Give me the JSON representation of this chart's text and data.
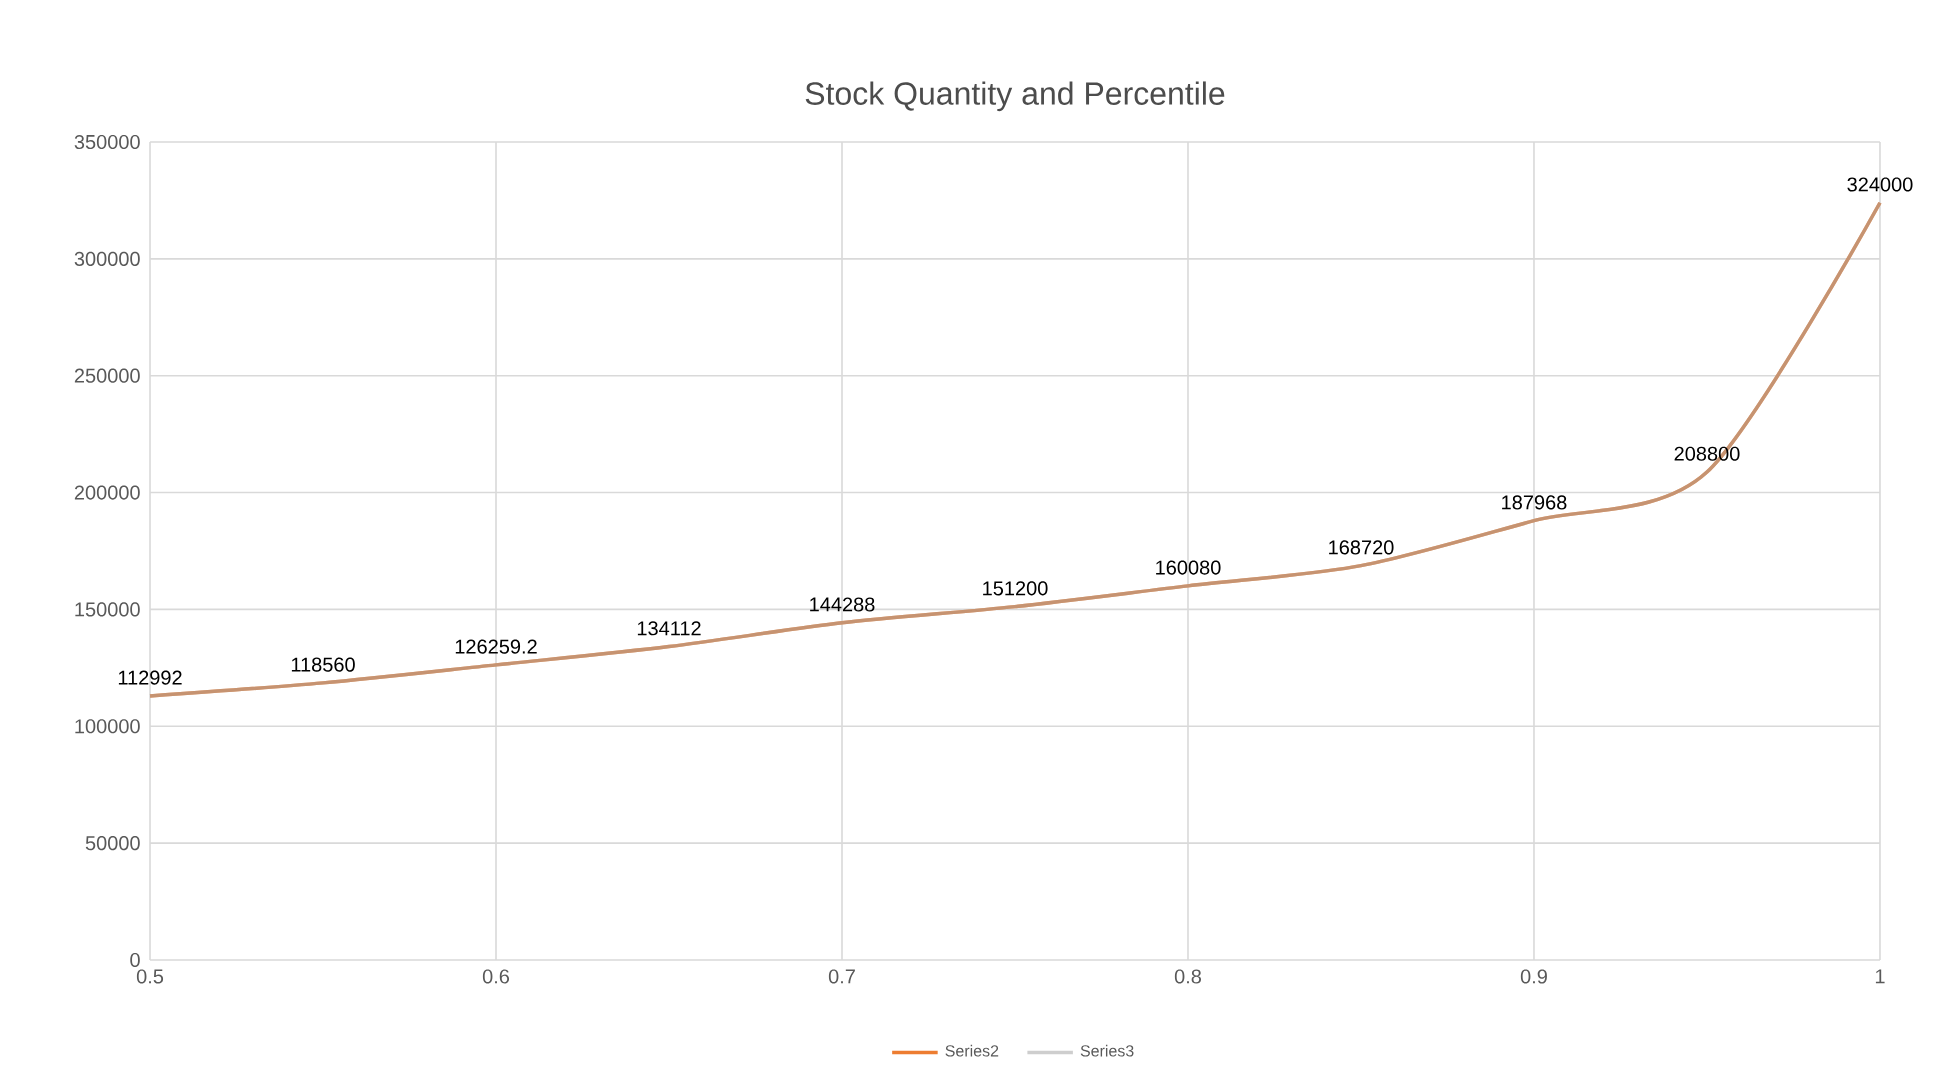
{
  "chart_data": {
    "type": "line",
    "title": "Stock Quantity and Percentile",
    "x": [
      0.5,
      0.55,
      0.6,
      0.65,
      0.7,
      0.75,
      0.8,
      0.85,
      0.9,
      0.95,
      1.0
    ],
    "series": [
      {
        "name": "Series2",
        "color": "#ed7d31",
        "values": [
          112992,
          118560,
          126259.2,
          134112,
          144288,
          151200,
          160080,
          168720,
          187968,
          208800,
          324000
        ]
      },
      {
        "name": "Series3",
        "color": "#a5a5a5",
        "values": [
          112992,
          118560,
          126259.2,
          134112,
          144288,
          151200,
          160080,
          168720,
          187968,
          208800,
          324000
        ],
        "value_labels": [
          "112992",
          "118560",
          "126259.2",
          "134112",
          "144288",
          "151200",
          "160080",
          "168720",
          "187968",
          "208800",
          "324000"
        ]
      }
    ],
    "xlim": [
      0.5,
      1
    ],
    "xticks": [
      0.5,
      0.6,
      0.7,
      0.8,
      0.9,
      1
    ],
    "ylim": [
      0,
      350000
    ],
    "yticks": [
      0,
      50000,
      100000,
      150000,
      200000,
      250000,
      300000,
      350000
    ],
    "grid": true,
    "legend": "bottom",
    "marker": "none",
    "line_style": "solid"
  }
}
